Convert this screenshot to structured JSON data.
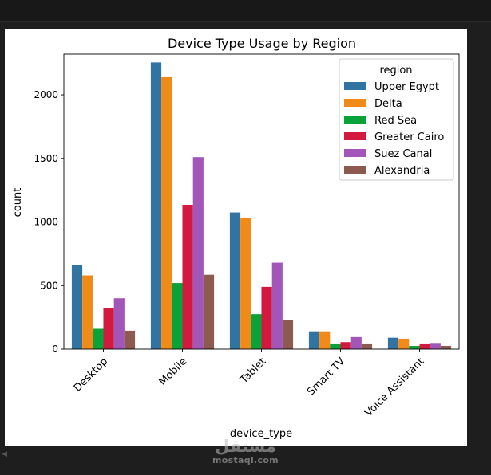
{
  "chart_data": {
    "type": "bar",
    "title": "Device Type Usage by Region",
    "xlabel": "device_type",
    "ylabel": "count",
    "ylim": [
      0,
      2320
    ],
    "yticks": [
      0,
      500,
      1000,
      1500,
      2000
    ],
    "categories": [
      "Desktop",
      "Mobile",
      "Tablet",
      "Smart TV",
      "Voice Assistant"
    ],
    "legend": {
      "title": "region",
      "placement": "top-right"
    },
    "grid": false,
    "series": [
      {
        "name": "Upper Egypt",
        "color": "#3274a1",
        "values": [
          660,
          2255,
          1075,
          140,
          90
        ]
      },
      {
        "name": "Delta",
        "color": "#f08a19",
        "values": [
          580,
          2145,
          1035,
          140,
          82
        ]
      },
      {
        "name": "Red Sea",
        "color": "#0aa33a",
        "values": [
          160,
          520,
          275,
          38,
          25
        ]
      },
      {
        "name": "Greater Cairo",
        "color": "#d4193e",
        "values": [
          320,
          1135,
          490,
          55,
          38
        ]
      },
      {
        "name": "Suez Canal",
        "color": "#a256b8",
        "values": [
          400,
          1510,
          680,
          95,
          42
        ]
      },
      {
        "name": "Alexandria",
        "color": "#8c5a4e",
        "values": [
          145,
          585,
          228,
          38,
          25
        ]
      }
    ]
  },
  "watermark": {
    "arabic": "مستقل",
    "latin": "mostaql.com"
  }
}
